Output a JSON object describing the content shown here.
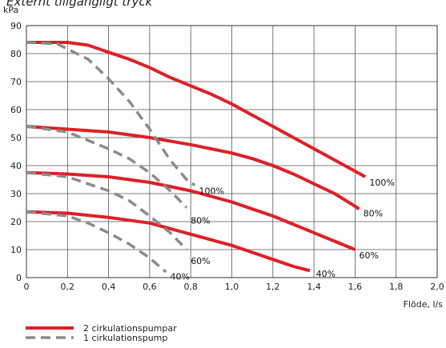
{
  "chart_data": {
    "type": "line",
    "title": "Externt tillgängligt tryck",
    "ylabel": "kPa",
    "xlabel": "Flöde, l/s",
    "xlim": [
      0,
      2.0
    ],
    "ylim": [
      0,
      90
    ],
    "x_ticks": [
      "0",
      "0,2",
      "0,4",
      "0,6",
      "0,8",
      "1,0",
      "1,2",
      "1,4",
      "1,6",
      "1,8",
      "2,0"
    ],
    "y_ticks": [
      "0",
      "10",
      "20",
      "30",
      "40",
      "50",
      "60",
      "70",
      "80",
      "90"
    ],
    "grid": true,
    "legend": [
      {
        "label": "2 cirkulationspumpar",
        "style": "solid",
        "color": "#e01f26"
      },
      {
        "label": "1 cirkulationspump",
        "style": "dashed",
        "color": "#8c8c8c"
      }
    ],
    "series": [
      {
        "group": "2 cirkulationspumpar",
        "label": "100%",
        "color": "#e01f26",
        "style": "solid",
        "points": [
          [
            0,
            84
          ],
          [
            0.2,
            84
          ],
          [
            0.3,
            83
          ],
          [
            0.4,
            80.5
          ],
          [
            0.5,
            78
          ],
          [
            0.6,
            75
          ],
          [
            0.7,
            71.5
          ],
          [
            0.8,
            68.5
          ],
          [
            0.9,
            65.5
          ],
          [
            1.0,
            62
          ],
          [
            1.1,
            58
          ],
          [
            1.2,
            54
          ],
          [
            1.3,
            50
          ],
          [
            1.4,
            46
          ],
          [
            1.5,
            42
          ],
          [
            1.6,
            38
          ],
          [
            1.65,
            36
          ]
        ]
      },
      {
        "group": "2 cirkulationspumpar",
        "label": "80%",
        "color": "#e01f26",
        "style": "solid",
        "points": [
          [
            0,
            54
          ],
          [
            0.2,
            53
          ],
          [
            0.4,
            52
          ],
          [
            0.6,
            50
          ],
          [
            0.8,
            47.5
          ],
          [
            1.0,
            44.5
          ],
          [
            1.1,
            42.5
          ],
          [
            1.2,
            40
          ],
          [
            1.3,
            37
          ],
          [
            1.4,
            33.5
          ],
          [
            1.5,
            30
          ],
          [
            1.6,
            25.5
          ],
          [
            1.62,
            24.5
          ]
        ]
      },
      {
        "group": "2 cirkulationspumpar",
        "label": "60%",
        "color": "#e01f26",
        "style": "solid",
        "points": [
          [
            0,
            37.5
          ],
          [
            0.2,
            37
          ],
          [
            0.4,
            36
          ],
          [
            0.6,
            34
          ],
          [
            0.8,
            31
          ],
          [
            0.9,
            29
          ],
          [
            1.0,
            27
          ],
          [
            1.1,
            24.5
          ],
          [
            1.2,
            22
          ],
          [
            1.3,
            19
          ],
          [
            1.4,
            16
          ],
          [
            1.5,
            13
          ],
          [
            1.6,
            10
          ]
        ]
      },
      {
        "group": "2 cirkulationspumpar",
        "label": "40%",
        "color": "#e01f26",
        "style": "solid",
        "points": [
          [
            0,
            23.5
          ],
          [
            0.2,
            23
          ],
          [
            0.4,
            21.5
          ],
          [
            0.6,
            19.5
          ],
          [
            0.7,
            17.5
          ],
          [
            0.8,
            15.5
          ],
          [
            0.9,
            13.5
          ],
          [
            1.0,
            11.5
          ],
          [
            1.1,
            9
          ],
          [
            1.2,
            6.5
          ],
          [
            1.3,
            4
          ],
          [
            1.38,
            2.5
          ]
        ]
      },
      {
        "group": "1 cirkulationspump",
        "label": "100%",
        "color": "#8c8c8c",
        "style": "dashed",
        "points": [
          [
            0,
            84
          ],
          [
            0.15,
            83.5
          ],
          [
            0.3,
            78
          ],
          [
            0.4,
            71
          ],
          [
            0.5,
            63
          ],
          [
            0.6,
            53
          ],
          [
            0.7,
            42
          ],
          [
            0.78,
            35
          ],
          [
            0.82,
            33
          ]
        ]
      },
      {
        "group": "1 cirkulationspump",
        "label": "80%",
        "color": "#8c8c8c",
        "style": "dashed",
        "points": [
          [
            0,
            54
          ],
          [
            0.2,
            52
          ],
          [
            0.3,
            49
          ],
          [
            0.4,
            46
          ],
          [
            0.5,
            42.5
          ],
          [
            0.6,
            37.5
          ],
          [
            0.7,
            31
          ],
          [
            0.78,
            25
          ]
        ]
      },
      {
        "group": "1 cirkulationspump",
        "label": "60%",
        "color": "#8c8c8c",
        "style": "dashed",
        "points": [
          [
            0,
            37.5
          ],
          [
            0.2,
            36
          ],
          [
            0.3,
            33.5
          ],
          [
            0.4,
            31
          ],
          [
            0.5,
            27.5
          ],
          [
            0.6,
            22
          ],
          [
            0.7,
            16
          ],
          [
            0.78,
            10
          ]
        ]
      },
      {
        "group": "1 cirkulationspump",
        "label": "40%",
        "color": "#8c8c8c",
        "style": "dashed",
        "points": [
          [
            0,
            23.5
          ],
          [
            0.2,
            22
          ],
          [
            0.3,
            19.5
          ],
          [
            0.4,
            16
          ],
          [
            0.5,
            12
          ],
          [
            0.6,
            7
          ],
          [
            0.68,
            2
          ]
        ]
      }
    ],
    "annotations": [
      {
        "text": "100%",
        "x": 1.67,
        "y": 34
      },
      {
        "text": "80%",
        "x": 1.64,
        "y": 23
      },
      {
        "text": "60%",
        "x": 1.62,
        "y": 8
      },
      {
        "text": "40%",
        "x": 1.41,
        "y": 1.5
      },
      {
        "text": "100%",
        "x": 0.84,
        "y": 31
      },
      {
        "text": "80%",
        "x": 0.8,
        "y": 20.5
      },
      {
        "text": "60%",
        "x": 0.8,
        "y": 6
      },
      {
        "text": "40%",
        "x": 0.7,
        "y": 0.5
      }
    ]
  }
}
